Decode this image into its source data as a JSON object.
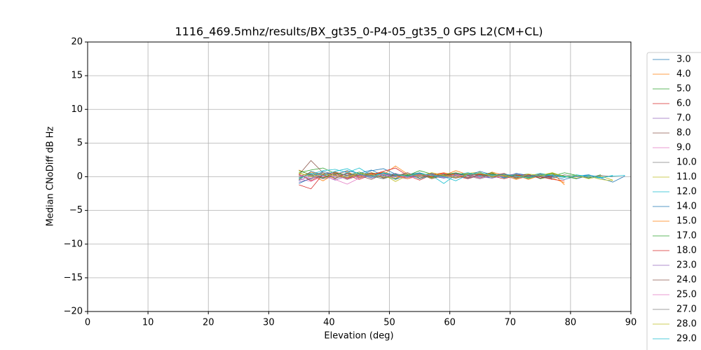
{
  "chart_data": {
    "type": "line",
    "title": "1116_469.5mhz/results/BX_gt35_0-P4-05_gt35_0 GPS L2(CM+CL)",
    "xlabel": "Elevation (deg)",
    "ylabel": "Median CNoDiff dB Hz",
    "xlim": [
      0,
      90
    ],
    "ylim": [
      -20,
      20
    ],
    "xticks": [
      0,
      10,
      20,
      30,
      40,
      50,
      60,
      70,
      80,
      90
    ],
    "yticks": [
      {
        "value": -20,
        "label": "−20"
      },
      {
        "value": -15,
        "label": "−15"
      },
      {
        "value": -10,
        "label": "−10"
      },
      {
        "value": -5,
        "label": "−5"
      },
      0,
      5,
      10,
      15,
      20
    ],
    "grid": true,
    "legend": "right-outside",
    "x": [
      35,
      37,
      39,
      41,
      43,
      45,
      47,
      49,
      51,
      53,
      55,
      57,
      59,
      61,
      63,
      65,
      67,
      69,
      71,
      73,
      75,
      77,
      79,
      81,
      83,
      85,
      87,
      89
    ],
    "series": [
      {
        "name": "3.0",
        "color": "#1f77b4",
        "values": [
          -0.5,
          0.8,
          0.3,
          -0.2,
          0.6,
          0.1,
          0.9,
          1.2,
          0.4,
          -0.3,
          0.2,
          0.5,
          -0.1,
          0.3,
          0.6,
          0.2,
          -0.2,
          0.4,
          0.1,
          -0.3,
          0.2,
          0.0,
          -0.4,
          0.1,
          0.3,
          -0.2,
          -0.8,
          0.1
        ]
      },
      {
        "name": "4.0",
        "color": "#ff7f0e",
        "values": [
          1.0,
          0.2,
          -0.6,
          0.4,
          0.8,
          -0.2,
          0.5,
          0.3,
          1.6,
          0.4,
          -0.3,
          0.6,
          0.2,
          0.9,
          0.3,
          -0.1,
          0.7,
          0.2,
          -0.4,
          0.1,
          0.5,
          -0.2,
          -0.9,
          null,
          null,
          null,
          null,
          null
        ]
      },
      {
        "name": "5.0",
        "color": "#2ca02c",
        "values": [
          0.6,
          1.0,
          1.3,
          0.5,
          -0.2,
          0.3,
          0.1,
          0.6,
          -0.3,
          0.2,
          0.9,
          0.4,
          0.1,
          -0.2,
          0.5,
          0.3,
          0.6,
          -0.1,
          0.2,
          0.4,
          -0.3,
          0.1,
          0.6,
          0.2,
          -0.2,
          0.3,
          null,
          null
        ]
      },
      {
        "name": "6.0",
        "color": "#d62728",
        "values": [
          -1.2,
          -1.8,
          0.4,
          0.7,
          0.2,
          -0.4,
          0.3,
          0.8,
          1.3,
          0.2,
          -0.5,
          0.3,
          0.6,
          0.1,
          -0.3,
          0.4,
          0.2,
          0.5,
          -0.2,
          0.3,
          0.0,
          -0.4,
          -0.6,
          null,
          null,
          null,
          null,
          null
        ]
      },
      {
        "name": "7.0",
        "color": "#9467bd",
        "values": [
          -0.8,
          -0.3,
          0.2,
          -0.5,
          0.1,
          0.4,
          -0.2,
          0.3,
          0.0,
          -0.3,
          0.2,
          -0.1,
          0.4,
          0.1,
          -0.2,
          0.3,
          0.0,
          0.2,
          -0.3,
          0.1,
          0.3,
          -0.1,
          null,
          null,
          null,
          null,
          null,
          null
        ]
      },
      {
        "name": "8.0",
        "color": "#8c564b",
        "values": [
          0.3,
          2.4,
          0.6,
          -0.3,
          0.5,
          0.2,
          -0.4,
          0.4,
          0.1,
          0.6,
          -0.2,
          0.3,
          0.1,
          0.4,
          -0.3,
          0.2,
          0.5,
          -0.1,
          0.3,
          0.0,
          0.4,
          -0.2,
          null,
          null,
          null,
          null,
          null,
          null
        ]
      },
      {
        "name": "9.0",
        "color": "#e377c2",
        "values": [
          -0.3,
          -0.7,
          0.1,
          -0.4,
          -1.1,
          -0.2,
          0.3,
          -0.1,
          0.2,
          -0.3,
          0.1,
          0.4,
          -0.2,
          0.1,
          0.3,
          -0.1,
          0.2,
          0.0,
          -0.3,
          0.2,
          null,
          null,
          null,
          null,
          null,
          null,
          null,
          null
        ]
      },
      {
        "name": "10.0",
        "color": "#7f7f7f",
        "values": [
          0.2,
          -0.4,
          0.6,
          0.1,
          -0.2,
          0.5,
          0.2,
          -0.1,
          0.4,
          0.0,
          0.3,
          -0.2,
          0.2,
          0.5,
          0.1,
          -0.3,
          0.2,
          0.4,
          0.0,
          -0.2,
          0.3,
          0.1,
          -0.1,
          0.2,
          null,
          null,
          null,
          null
        ]
      },
      {
        "name": "11.0",
        "color": "#bcbd22",
        "values": [
          0.5,
          0.1,
          -0.3,
          0.4,
          0.2,
          -0.1,
          0.6,
          0.3,
          -0.7,
          0.2,
          0.4,
          -0.2,
          0.3,
          0.1,
          0.5,
          0.7,
          -0.1,
          0.3,
          0.2,
          -0.3,
          0.1,
          0.4,
          0.0,
          -0.2,
          0.1,
          -0.4,
          -0.6,
          null
        ]
      },
      {
        "name": "12.0",
        "color": "#17becf",
        "values": [
          -0.2,
          0.4,
          0.9,
          1.1,
          0.6,
          1.3,
          0.2,
          0.5,
          0.1,
          0.4,
          -0.3,
          0.2,
          -1.0,
          0.3,
          0.6,
          0.1,
          0.4,
          -0.2,
          0.3,
          0.1,
          0.5,
          0.2,
          -0.1,
          0.3,
          0.0,
          -0.2,
          0.2,
          null
        ]
      },
      {
        "name": "14.0",
        "color": "#1f77b4",
        "values": [
          -1.0,
          -0.2,
          0.8,
          0.3,
          0.9,
          0.5,
          1.0,
          0.2,
          -0.4,
          0.3,
          0.6,
          0.1,
          -0.2,
          0.4,
          0.2,
          0.8,
          0.3,
          -0.1,
          0.5,
          0.2,
          -0.2,
          0.3,
          0.1,
          -0.3,
          0.2,
          0.0,
          null,
          null
        ]
      },
      {
        "name": "15.0",
        "color": "#ff7f0e",
        "values": [
          -0.4,
          0.7,
          0.2,
          -0.2,
          0.5,
          -0.1,
          0.3,
          0.7,
          0.2,
          -0.3,
          0.4,
          0.1,
          0.6,
          0.2,
          -0.1,
          0.3,
          0.5,
          0.0,
          0.3,
          -0.4,
          0.2,
          0.6,
          -1.2,
          null,
          null,
          null,
          null,
          null
        ]
      },
      {
        "name": "17.0",
        "color": "#2ca02c",
        "values": [
          0.9,
          0.3,
          -0.2,
          0.6,
          0.2,
          0.7,
          0.1,
          -0.3,
          0.4,
          0.2,
          0.5,
          -0.1,
          0.3,
          0.6,
          0.2,
          -0.2,
          0.4,
          0.1,
          0.3,
          -0.1,
          0.2,
          0.5,
          0.1,
          -0.3,
          null,
          null,
          null,
          null
        ]
      },
      {
        "name": "18.0",
        "color": "#d62728",
        "values": [
          0.4,
          -0.6,
          0.3,
          0.5,
          -0.2,
          0.1,
          0.4,
          0.6,
          0.2,
          -0.1,
          0.3,
          0.0,
          0.5,
          -0.2,
          0.2,
          0.4,
          0.1,
          -0.3,
          0.2,
          0.3,
          -0.2,
          0.1,
          null,
          null,
          null,
          null,
          null,
          null
        ]
      },
      {
        "name": "23.0",
        "color": "#9467bd",
        "values": [
          -0.6,
          0.2,
          -0.3,
          0.1,
          0.4,
          -0.2,
          0.3,
          0.1,
          0.5,
          -0.1,
          0.2,
          0.4,
          -0.2,
          0.1,
          0.3,
          0.0,
          -0.2,
          0.2,
          0.4,
          0.1,
          null,
          null,
          null,
          null,
          null,
          null,
          null,
          null
        ]
      },
      {
        "name": "24.0",
        "color": "#8c564b",
        "values": [
          0.1,
          0.5,
          -0.1,
          0.3,
          -0.4,
          0.2,
          0.6,
          -0.2,
          0.3,
          0.1,
          0.4,
          -0.3,
          0.2,
          0.5,
          -0.1,
          0.3,
          0.1,
          0.4,
          -0.2,
          0.2,
          0.0,
          -0.3,
          null,
          null,
          null,
          null,
          null,
          null
        ]
      },
      {
        "name": "25.0",
        "color": "#e377c2",
        "values": [
          0.3,
          -0.2,
          0.4,
          0.1,
          -0.3,
          0.2,
          0.0,
          0.4,
          -0.2,
          0.1,
          0.3,
          0.2,
          -0.1,
          0.3,
          0.1,
          -0.2,
          0.2,
          0.0,
          null,
          null,
          null,
          null,
          null,
          null,
          null,
          null,
          null,
          null
        ]
      },
      {
        "name": "27.0",
        "color": "#7f7f7f",
        "values": [
          -0.1,
          0.3,
          0.6,
          -0.2,
          0.2,
          0.5,
          0.1,
          -0.3,
          0.2,
          0.4,
          0.0,
          0.3,
          0.1,
          -0.2,
          0.4,
          0.2,
          0.0,
          0.3,
          -0.1,
          0.2,
          0.1,
          -0.2,
          0.3,
          0.0,
          -0.1,
          0.2,
          0.0,
          null
        ]
      },
      {
        "name": "28.0",
        "color": "#bcbd22",
        "values": [
          0.6,
          0.0,
          0.4,
          0.2,
          -0.1,
          0.5,
          0.3,
          0.0,
          -0.2,
          0.4,
          0.1,
          0.6,
          0.2,
          -0.1,
          0.3,
          0.5,
          0.1,
          0.2,
          -0.3,
          0.4,
          0.2,
          0.6,
          0.0,
          0.2,
          -0.3,
          0.1,
          -0.5,
          null
        ]
      },
      {
        "name": "29.0",
        "color": "#17becf",
        "values": [
          -0.3,
          0.5,
          0.2,
          0.8,
          1.2,
          0.4,
          -0.1,
          0.6,
          0.3,
          0.1,
          0.5,
          0.2,
          0.0,
          -0.6,
          0.3,
          0.6,
          0.2,
          0.4,
          0.1,
          -0.2,
          0.3,
          0.2,
          0.0,
          0.1,
          0.2,
          -0.1,
          0.1,
          0.2
        ]
      }
    ]
  }
}
